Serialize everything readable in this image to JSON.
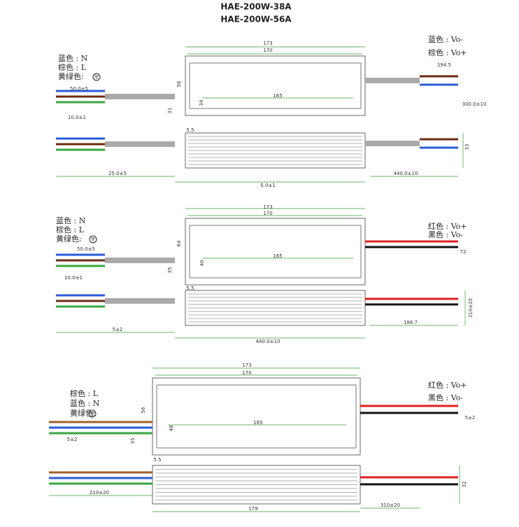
{
  "header": {
    "model_lines": [
      "HAE-200W-38A",
      "HAE-200W-56A"
    ]
  },
  "drawings": [
    {
      "wire_labels": [
        "蓝色 : Vo-",
        "棕色 : Vo+",
        "蓝色 : N",
        "棕色 : L",
        "黄绿色:"
      ],
      "dimensions": [
        "173",
        "170",
        "165",
        "56",
        "34",
        "31",
        "5.5",
        "50.0±5",
        "10.0±1",
        "25.0±5",
        "5.0±1",
        "440.0±10",
        "194.5",
        "300.0±10",
        "33"
      ]
    },
    {
      "wire_labels": [
        "蓝色 : N",
        "棕色 : L",
        "黄绿色:",
        "红色 : Vo+",
        "黑色 : Vo-"
      ],
      "dimensions": [
        "173",
        "170",
        "165",
        "64",
        "40",
        "35",
        "5.5",
        "50.0±5",
        "10.0±1",
        "5±2",
        "440.0±10",
        "186.7",
        "310±20",
        "72"
      ]
    },
    {
      "wire_labels": [
        "棕色 : L",
        "蓝色 : N",
        "黄绿色:",
        "红色 : Vo+",
        "黑色 : Vo-"
      ],
      "dimensions": [
        "173",
        "170",
        "165",
        "56",
        "48",
        "35",
        "5.5",
        "5±2",
        "5±2",
        "210±20",
        "179",
        "310±20",
        "32"
      ]
    }
  ]
}
